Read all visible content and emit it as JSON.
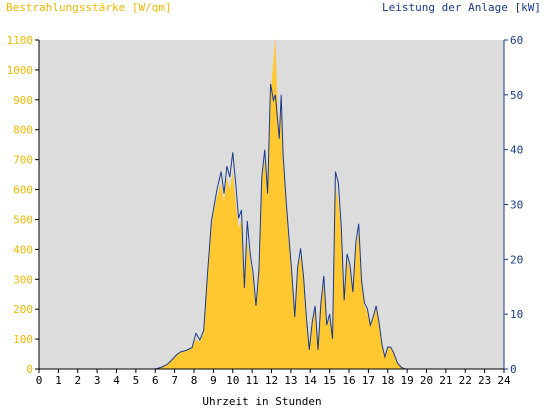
{
  "chart_data": {
    "type": "area",
    "title_left": "Bestrahlungsstärke [W/qm]",
    "title_right": "Leistung der Anlage [kW]",
    "xlabel": "Uhrzeit in Stunden",
    "xlim": [
      0,
      24
    ],
    "x_ticks": [
      "0",
      "1",
      "2",
      "3",
      "4",
      "5",
      "6",
      "7",
      "8",
      "9",
      "10",
      "11",
      "12",
      "13",
      "14",
      "15",
      "16",
      "17",
      "18",
      "19",
      "20",
      "21",
      "22",
      "23",
      "24"
    ],
    "ylim_left": [
      0,
      1100
    ],
    "y_ticks_left": [
      "0",
      "100",
      "200",
      "300",
      "400",
      "500",
      "600",
      "700",
      "800",
      "900",
      "1000",
      "1100"
    ],
    "ylim_right": [
      0,
      60
    ],
    "y_ticks_right": [
      "0",
      "10",
      "20",
      "30",
      "40",
      "50",
      "60"
    ],
    "colors": {
      "plot_bg": "#dcdcdc",
      "irradiance_fill": "#ffc830",
      "power_line": "#1a3a8a",
      "left_axis_text": "#f0b800",
      "right_axis_text": "#1a3a8a"
    },
    "series": [
      {
        "name": "Bestrahlungsstärke [W/qm]",
        "axis": "left",
        "style": "area",
        "x": [
          0,
          6.0,
          6.3,
          6.6,
          6.9,
          7.1,
          7.3,
          7.6,
          7.9,
          8.1,
          8.3,
          8.5,
          8.7,
          8.9,
          9.0,
          9.2,
          9.4,
          9.55,
          9.7,
          9.85,
          10.0,
          10.15,
          10.3,
          10.45,
          10.6,
          10.75,
          10.9,
          11.05,
          11.2,
          11.35,
          11.5,
          11.65,
          11.8,
          11.95,
          12.1,
          12.2,
          12.3,
          12.4,
          12.5,
          12.6,
          12.75,
          12.9,
          13.05,
          13.2,
          13.35,
          13.5,
          13.65,
          13.8,
          13.95,
          14.1,
          14.25,
          14.4,
          14.55,
          14.7,
          14.85,
          15.0,
          15.15,
          15.3,
          15.45,
          15.6,
          15.75,
          15.9,
          16.05,
          16.2,
          16.35,
          16.5,
          16.65,
          16.8,
          16.95,
          17.1,
          17.25,
          17.4,
          17.55,
          17.7,
          17.85,
          18.0,
          18.15,
          18.3,
          18.5,
          18.7,
          18.9,
          19.2,
          24
        ],
        "values": [
          0,
          0,
          5,
          15,
          30,
          45,
          55,
          60,
          70,
          100,
          90,
          120,
          310,
          470,
          520,
          580,
          620,
          560,
          640,
          600,
          660,
          560,
          470,
          500,
          260,
          430,
          360,
          300,
          200,
          310,
          640,
          700,
          580,
          920,
          1030,
          1110,
          900,
          760,
          880,
          700,
          560,
          430,
          310,
          170,
          330,
          380,
          300,
          170,
          60,
          150,
          200,
          60,
          210,
          290,
          140,
          170,
          100,
          610,
          560,
          450,
          220,
          370,
          330,
          250,
          400,
          460,
          280,
          210,
          190,
          140,
          170,
          210,
          150,
          80,
          40,
          70,
          70,
          55,
          20,
          5,
          0,
          0,
          0
        ]
      },
      {
        "name": "Leistung der Anlage [kW]",
        "axis": "right",
        "style": "line",
        "x": [
          0,
          6.0,
          6.3,
          6.6,
          6.9,
          7.1,
          7.3,
          7.6,
          7.9,
          8.1,
          8.3,
          8.5,
          8.7,
          8.9,
          9.0,
          9.2,
          9.4,
          9.55,
          9.7,
          9.85,
          10.0,
          10.15,
          10.3,
          10.45,
          10.6,
          10.75,
          10.9,
          11.05,
          11.2,
          11.35,
          11.5,
          11.65,
          11.8,
          11.95,
          12.1,
          12.2,
          12.3,
          12.4,
          12.5,
          12.6,
          12.75,
          12.9,
          13.05,
          13.2,
          13.35,
          13.5,
          13.65,
          13.8,
          13.95,
          14.1,
          14.25,
          14.4,
          14.55,
          14.7,
          14.85,
          15.0,
          15.15,
          15.3,
          15.45,
          15.6,
          15.75,
          15.9,
          16.05,
          16.2,
          16.35,
          16.5,
          16.65,
          16.8,
          16.95,
          17.1,
          17.25,
          17.4,
          17.55,
          17.7,
          17.85,
          18.0,
          18.15,
          18.3,
          18.5,
          18.7,
          18.9,
          19.2,
          24
        ],
        "values": [
          0,
          0,
          0.3,
          0.8,
          1.8,
          2.6,
          3.1,
          3.4,
          3.9,
          6.5,
          5.3,
          7.0,
          17.5,
          27.0,
          29.0,
          33.0,
          36.0,
          32.0,
          37.0,
          35.0,
          39.5,
          34.0,
          27.5,
          29.0,
          14.8,
          27.0,
          21.0,
          17.5,
          11.5,
          18.0,
          35.0,
          40.0,
          32.0,
          52.0,
          49.0,
          50.0,
          46.0,
          42.0,
          50.0,
          39.0,
          31.0,
          24.0,
          17.5,
          9.5,
          18.5,
          22.0,
          17.0,
          9.5,
          3.5,
          8.5,
          11.5,
          3.5,
          12.0,
          17.0,
          8.0,
          10.0,
          5.5,
          36.0,
          34.0,
          26.0,
          12.5,
          21.0,
          19.0,
          14.0,
          23.0,
          26.5,
          16.0,
          12.0,
          11.0,
          8.0,
          9.5,
          11.5,
          8.5,
          4.5,
          2.2,
          4.0,
          4.0,
          3.0,
          1.1,
          0.3,
          0,
          0,
          0
        ]
      }
    ]
  }
}
